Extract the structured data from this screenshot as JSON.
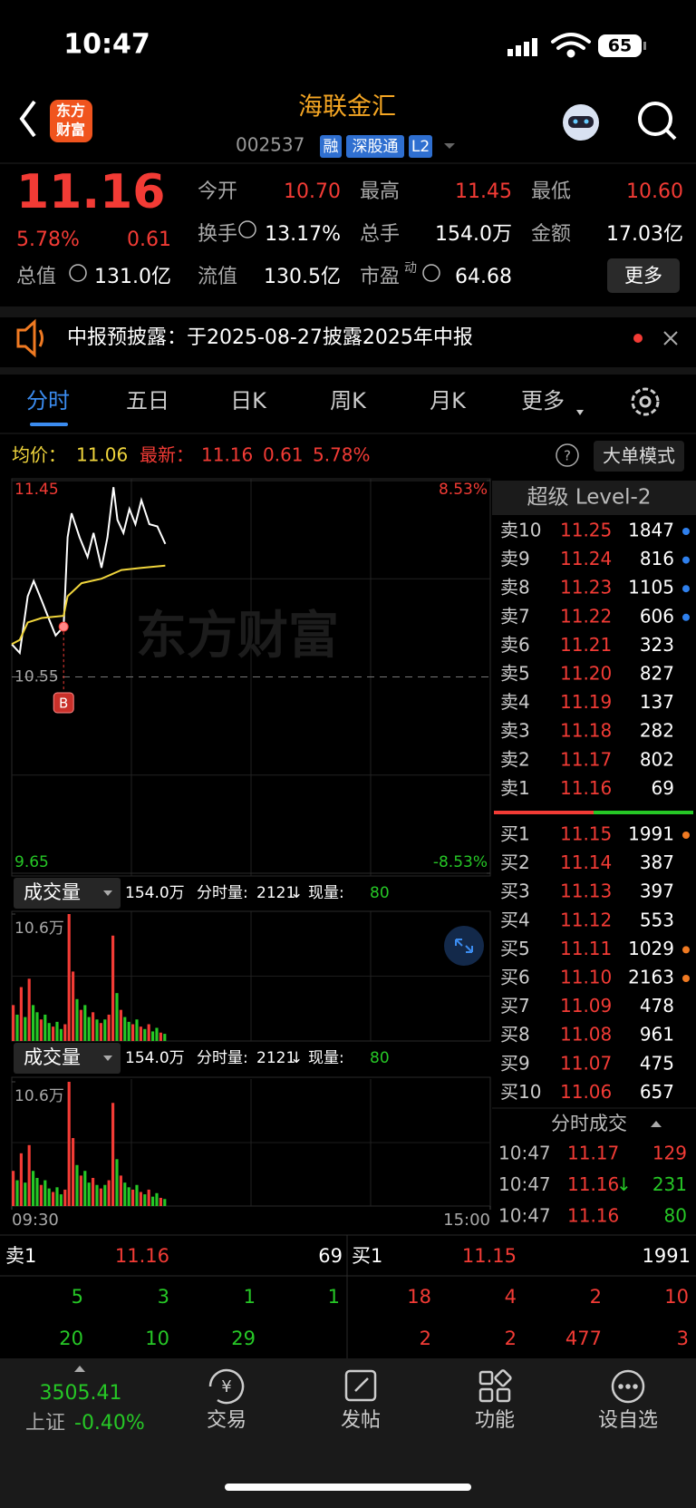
{
  "status_bar": {
    "time": "10:47",
    "battery": "65"
  },
  "header": {
    "logo": [
      "东方",
      "财富"
    ],
    "title": "海联金汇",
    "code": "002537",
    "tags": [
      "融",
      "深股通",
      "L2"
    ]
  },
  "quote": {
    "price": "11.16",
    "change_pct": "5.78%",
    "change": "0.61",
    "fields": [
      {
        "label": "今开",
        "value": "10.70",
        "color": "#f23b35"
      },
      {
        "label": "最高",
        "value": "11.45",
        "color": "#f23b35"
      },
      {
        "label": "最低",
        "value": "10.60",
        "color": "#f23b35"
      },
      {
        "label": "换手",
        "value": "13.17%",
        "color": "#ffffff"
      },
      {
        "label": "总手",
        "value": "154.0万",
        "color": "#ffffff"
      },
      {
        "label": "金额",
        "value": "17.03亿",
        "color": "#ffffff"
      },
      {
        "label": "流值",
        "value": "130.5亿",
        "color": "#ffffff"
      },
      {
        "label": "市盈",
        "value": "64.68",
        "color": "#ffffff"
      }
    ],
    "total_value": {
      "label": "总值",
      "value": "131.0亿"
    },
    "pe_superscript": "动",
    "more": "更多"
  },
  "notice": {
    "text": "中报预披露：于2025-08-27披露2025年中报"
  },
  "tabs": [
    "分时",
    "五日",
    "日K",
    "周K",
    "月K",
    "更多"
  ],
  "chart_info": {
    "avg_label": "均价：",
    "avg": "11.06",
    "latest_label": "最新：",
    "latest": "11.16",
    "change": "0.61",
    "change_pct": "5.78%",
    "mode": "大单模式"
  },
  "watermark": "东方财富",
  "trade_marker": "B",
  "volume_panels": [
    {
      "label": "成交量",
      "total": "154.0万",
      "minute_label": "分时量:",
      "minute": "2121",
      "arrow": "↓",
      "current_label": "现量:",
      "current": "80"
    },
    {
      "label": "成交量",
      "total": "154.0万",
      "minute_label": "分时量:",
      "minute": "2121",
      "arrow": "↓",
      "current_label": "现量:",
      "current": "80"
    }
  ],
  "order_book": {
    "title": "超级 Level-2",
    "asks": [
      {
        "label": "卖10",
        "price": "11.25",
        "volume": "1847",
        "dot": "#2f80ed"
      },
      {
        "label": "卖9",
        "price": "11.24",
        "volume": "816",
        "dot": "#2f80ed"
      },
      {
        "label": "卖8",
        "price": "11.23",
        "volume": "1105",
        "dot": "#2f80ed"
      },
      {
        "label": "卖7",
        "price": "11.22",
        "volume": "606",
        "dot": "#2f80ed"
      },
      {
        "label": "卖6",
        "price": "11.21",
        "volume": "323"
      },
      {
        "label": "卖5",
        "price": "11.20",
        "volume": "827"
      },
      {
        "label": "卖4",
        "price": "11.19",
        "volume": "137"
      },
      {
        "label": "卖3",
        "price": "11.18",
        "volume": "282"
      },
      {
        "label": "卖2",
        "price": "11.17",
        "volume": "802"
      },
      {
        "label": "卖1",
        "price": "11.16",
        "volume": "69"
      }
    ],
    "bids": [
      {
        "label": "买1",
        "price": "11.15",
        "volume": "1991",
        "dot": "#f07a22"
      },
      {
        "label": "买2",
        "price": "11.14",
        "volume": "387"
      },
      {
        "label": "买3",
        "price": "11.13",
        "volume": "397"
      },
      {
        "label": "买4",
        "price": "11.12",
        "volume": "553"
      },
      {
        "label": "买5",
        "price": "11.11",
        "volume": "1029",
        "dot": "#f07a22"
      },
      {
        "label": "买6",
        "price": "11.10",
        "volume": "2163",
        "dot": "#f07a22"
      },
      {
        "label": "买7",
        "price": "11.09",
        "volume": "478"
      },
      {
        "label": "买8",
        "price": "11.08",
        "volume": "961"
      },
      {
        "label": "买9",
        "price": "11.07",
        "volume": "475"
      },
      {
        "label": "买10",
        "price": "11.06",
        "volume": "657"
      }
    ]
  },
  "trades": {
    "title": "分时成交",
    "rows": [
      {
        "time": "10:47",
        "price": "11.17",
        "volume": "129",
        "volume_color": "#f23b35"
      },
      {
        "time": "10:47",
        "price": "11.16",
        "arrow": "↓",
        "volume": "231",
        "volume_color": "#26c726"
      },
      {
        "time": "10:47",
        "price": "11.16",
        "volume": "80",
        "volume_color": "#26c726"
      }
    ]
  },
  "bottom_stats": {
    "ask": {
      "label": "卖1",
      "price": "11.16",
      "volume": "69"
    },
    "bid": {
      "label": "买1",
      "price": "11.15",
      "volume": "1991"
    },
    "ask_rows": [
      [
        "5",
        "3",
        "1",
        "1"
      ],
      [
        "20",
        "10",
        "29"
      ]
    ],
    "bid_rows": [
      [
        "18",
        "4",
        "2",
        "10"
      ],
      [
        "2",
        "2",
        "477",
        "3"
      ]
    ]
  },
  "tab_bar": {
    "index_value": "3505.41",
    "index_name": "上证",
    "index_change": "-0.40%",
    "items": [
      "交易",
      "发帖",
      "功能",
      "设自选"
    ]
  },
  "chart_data": [
    {
      "type": "line",
      "xlim": [
        0,
        240
      ],
      "xticks": [
        {
          "value": 0,
          "label": "09:30"
        },
        {
          "value": 240,
          "label": "15:00"
        }
      ],
      "ylim": [
        9.65,
        11.45
      ],
      "yticks": [
        9.65,
        10.55,
        11.45
      ],
      "y2lim": [
        -8.53,
        8.53
      ],
      "y2ticks": [
        {
          "value": -8.53,
          "label": "-8.53%"
        },
        {
          "value": 8.53,
          "label": "8.53%"
        }
      ],
      "series": [
        {
          "color": "#ffffff",
          "x": [
            0,
            4,
            8,
            11,
            15,
            18,
            22,
            26,
            28,
            30,
            34,
            38,
            41,
            45,
            48,
            51,
            53,
            56,
            59,
            62,
            65,
            69,
            73,
            77
          ],
          "values": [
            10.7,
            10.66,
            10.92,
            10.99,
            10.9,
            10.83,
            10.74,
            10.78,
            11.19,
            11.3,
            11.19,
            11.1,
            11.21,
            11.05,
            11.19,
            11.42,
            11.27,
            11.21,
            11.32,
            11.25,
            11.36,
            11.25,
            11.24,
            11.16
          ]
        },
        {
          "color": "#f0d53c",
          "x": [
            0,
            4,
            8,
            15,
            26,
            28,
            35,
            45,
            50,
            55,
            65,
            77
          ],
          "values": [
            10.7,
            10.72,
            10.8,
            10.82,
            10.83,
            10.92,
            10.98,
            11.0,
            11.02,
            11.04,
            11.05,
            11.06
          ]
        }
      ]
    },
    {
      "type": "bar",
      "xlim": [
        0,
        240
      ],
      "ylim": [
        0,
        10.6
      ],
      "yticks": [
        {
          "value": 10.6,
          "label": "10.6万"
        }
      ],
      "x": [
        0,
        2,
        4,
        6,
        8,
        10,
        12,
        14,
        16,
        18,
        20,
        22,
        24,
        26,
        28,
        30,
        32,
        34,
        36,
        38,
        40,
        42,
        44,
        46,
        48,
        50,
        52,
        54,
        56,
        58,
        60,
        62,
        64,
        66,
        68,
        70,
        72,
        74,
        76
      ],
      "values": [
        3.0,
        2.2,
        4.5,
        2.0,
        5.2,
        3.0,
        2.4,
        1.8,
        2.2,
        1.5,
        1.2,
        1.6,
        1.0,
        1.4,
        10.6,
        5.8,
        3.5,
        2.6,
        3.0,
        2.0,
        2.4,
        1.8,
        1.5,
        1.8,
        2.2,
        8.8,
        4.0,
        2.6,
        2.0,
        1.6,
        1.4,
        1.8,
        1.2,
        1.0,
        1.4,
        0.8,
        1.1,
        0.7,
        0.6
      ],
      "colors": [
        "#f23b35",
        "#26c726",
        "#f23b35",
        "#26c726",
        "#f23b35",
        "#26c726",
        "#26c726",
        "#f23b35",
        "#26c726",
        "#26c726",
        "#f23b35",
        "#26c726",
        "#26c726",
        "#f23b35",
        "#f23b35",
        "#f23b35",
        "#26c726",
        "#f23b35",
        "#26c726",
        "#26c726",
        "#f23b35",
        "#26c726",
        "#f23b35",
        "#26c726",
        "#f23b35",
        "#f23b35",
        "#26c726",
        "#f23b35",
        "#26c726",
        "#26c726",
        "#f23b35",
        "#26c726",
        "#f23b35",
        "#26c726",
        "#f23b35",
        "#26c726",
        "#26c726",
        "#f23b35",
        "#26c726"
      ]
    }
  ]
}
